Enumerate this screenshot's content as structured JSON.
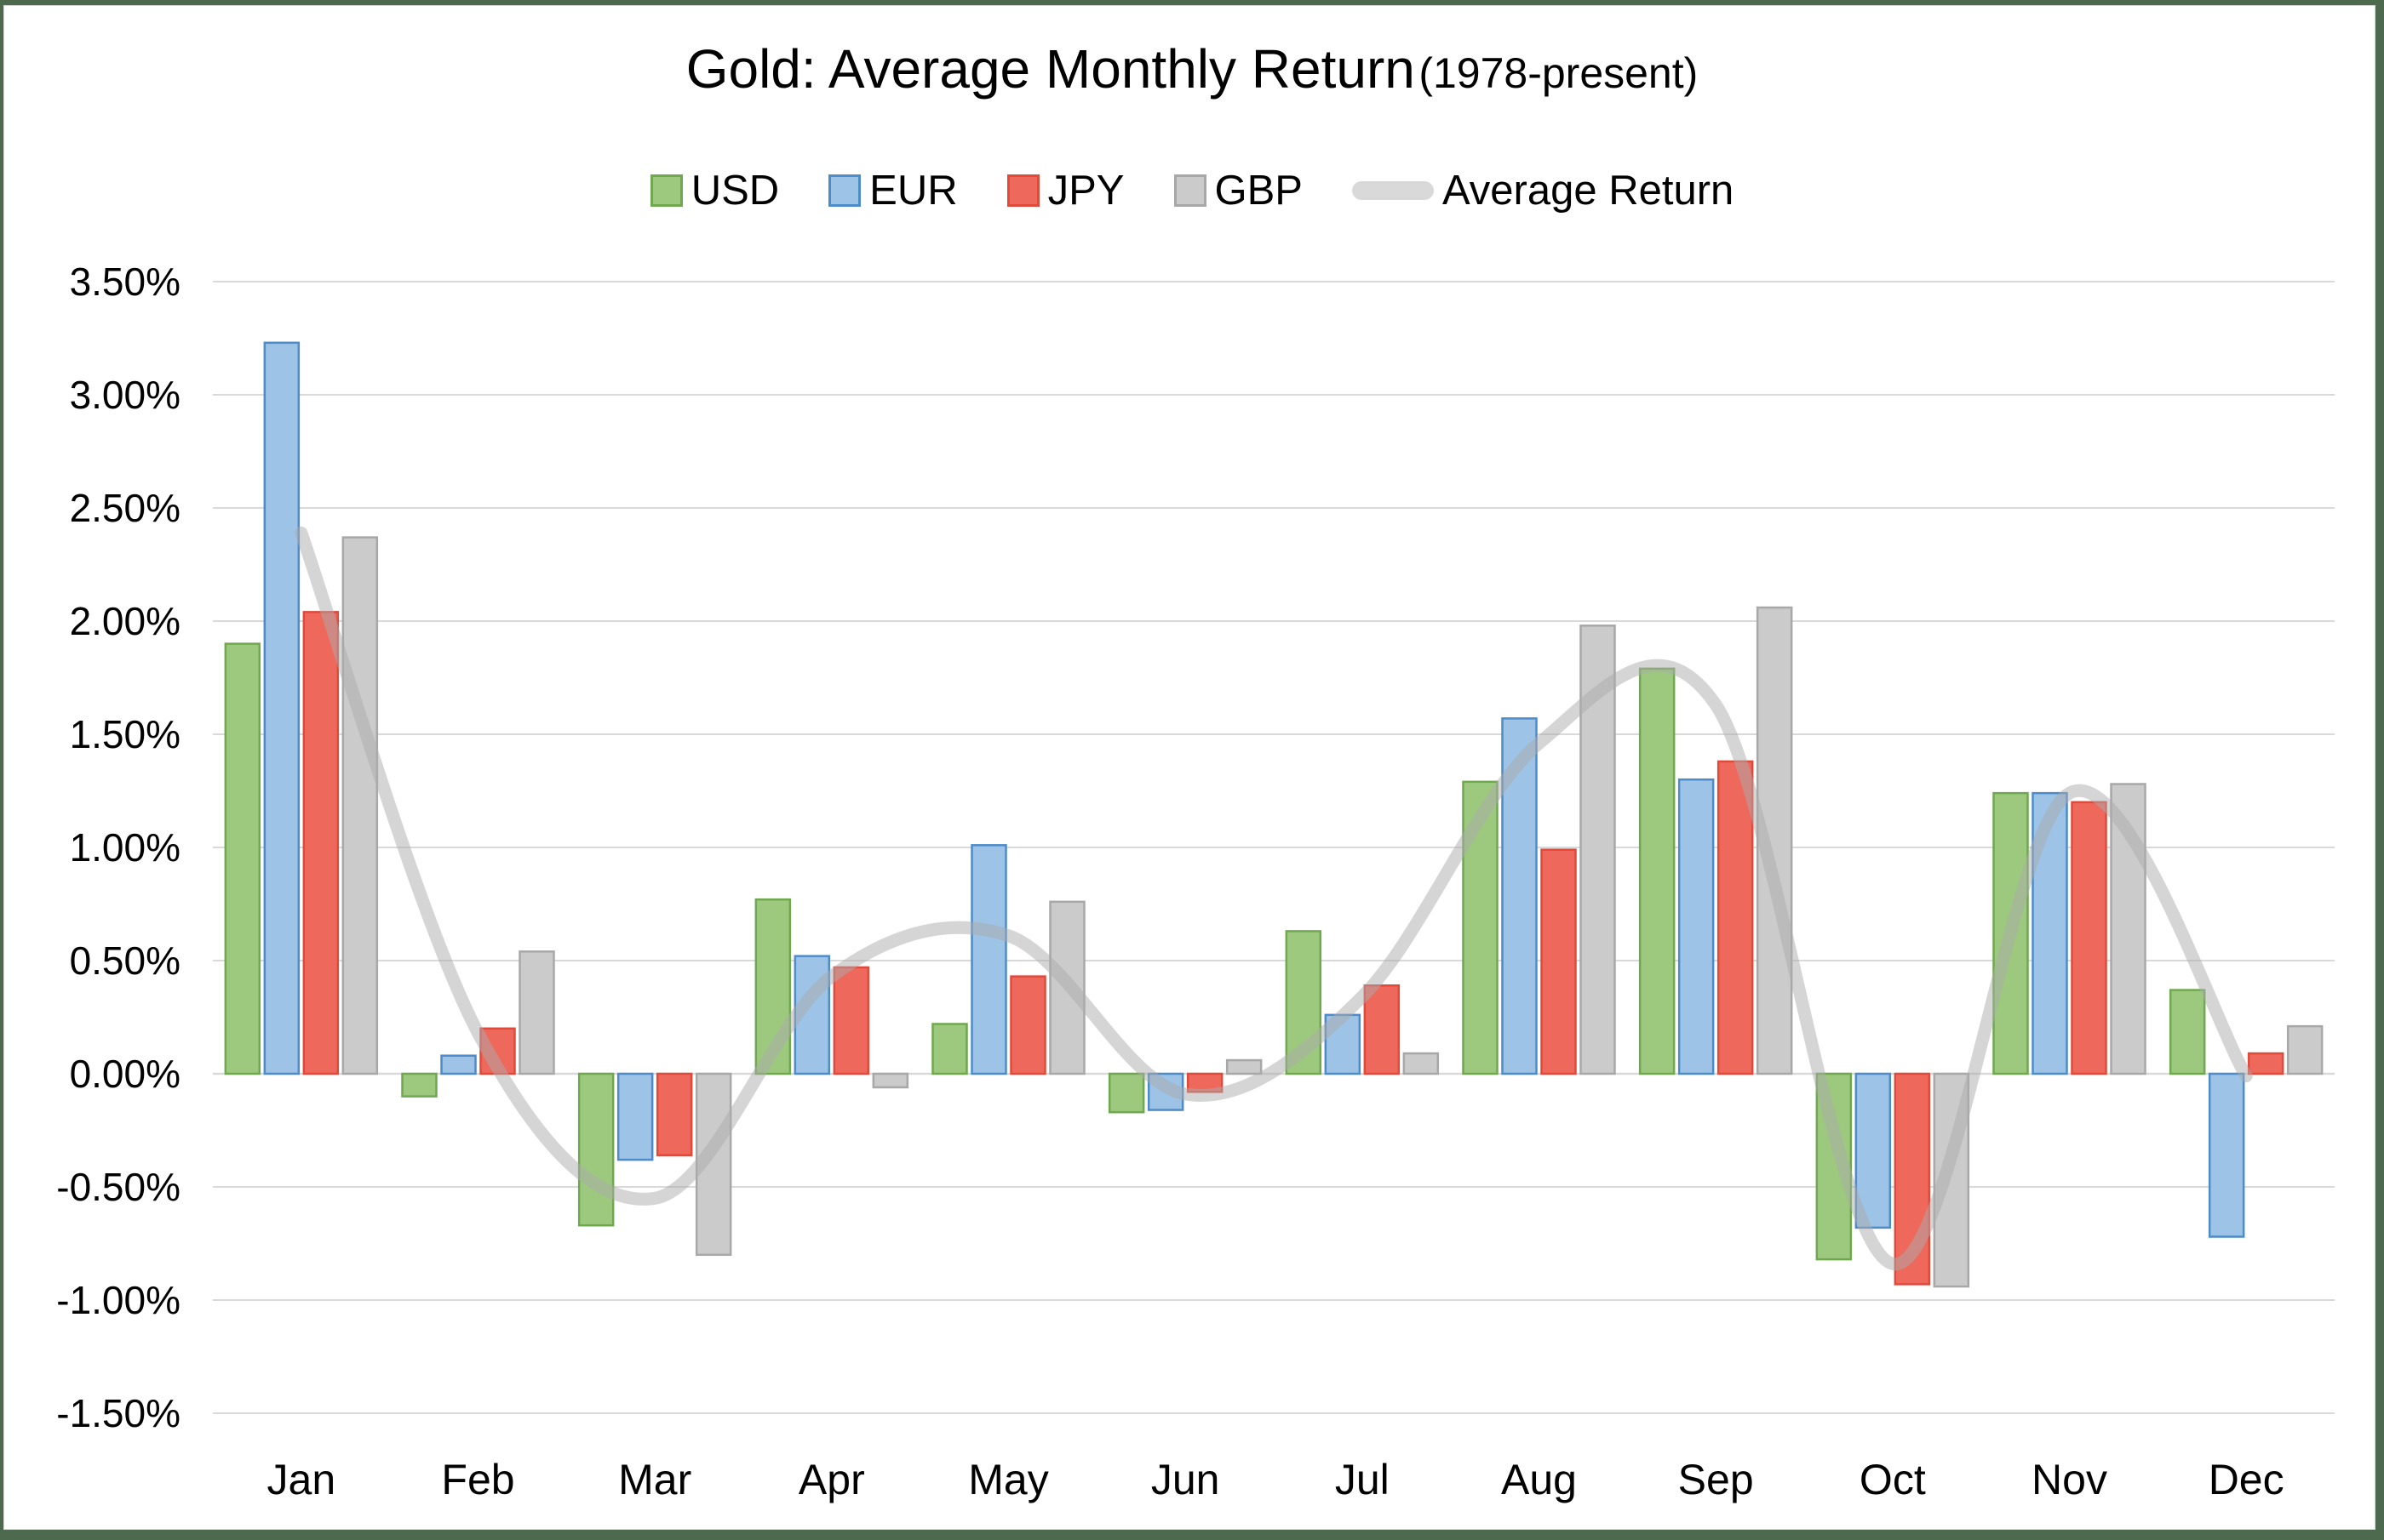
{
  "window": {
    "frame_color": "#4d6a4f",
    "panel_color": "#ffffff"
  },
  "title": {
    "main": "Gold: Average Monthly Return",
    "suffix": "(1978-present)"
  },
  "legend": [
    {
      "label": "USD",
      "type": "box",
      "fill": "#9dc97f",
      "border": "#6fa84f"
    },
    {
      "label": "EUR",
      "type": "box",
      "fill": "#9dc3e6",
      "border": "#4d8bc9"
    },
    {
      "label": "JPY",
      "type": "box",
      "fill": "#ef685c",
      "border": "#df4a3b"
    },
    {
      "label": "GBP",
      "type": "box",
      "fill": "#cbcbcb",
      "border": "#a8a8a8"
    },
    {
      "label": "Average Return",
      "type": "line",
      "fill": "#d9d9d9"
    }
  ],
  "chart_data": {
    "type": "bar",
    "title": "Gold: Average Monthly Return (1978-present)",
    "xlabel": "",
    "ylabel": "",
    "ylim": [
      -1.5,
      3.5
    ],
    "ytick_step": 0.5,
    "ytick_labels": [
      "3.50%",
      "3.00%",
      "2.50%",
      "2.00%",
      "1.50%",
      "1.00%",
      "0.50%",
      "0.00%",
      "-0.50%",
      "-1.00%",
      "-1.50%"
    ],
    "grid": true,
    "grid_color": "#d9d9d9",
    "legend_position": "top",
    "categories": [
      "Jan",
      "Feb",
      "Mar",
      "Apr",
      "May",
      "Jun",
      "Jul",
      "Aug",
      "Sep",
      "Oct",
      "Nov",
      "Dec"
    ],
    "series": [
      {
        "name": "USD",
        "fill": "#9dc97f",
        "border": "#6fa84f",
        "values": [
          1.9,
          -0.1,
          -0.67,
          0.77,
          0.22,
          -0.17,
          0.63,
          1.29,
          1.79,
          -0.82,
          1.24,
          0.37
        ]
      },
      {
        "name": "EUR",
        "fill": "#9dc3e6",
        "border": "#4d8bc9",
        "values": [
          3.23,
          0.08,
          -0.38,
          0.52,
          1.01,
          -0.16,
          0.26,
          1.57,
          1.3,
          -0.68,
          1.24,
          -0.72
        ]
      },
      {
        "name": "JPY",
        "fill": "#ef685c",
        "border": "#df4a3b",
        "values": [
          2.04,
          0.2,
          -0.36,
          0.47,
          0.43,
          -0.08,
          0.39,
          0.99,
          1.38,
          -0.93,
          1.2,
          0.09
        ]
      },
      {
        "name": "GBP",
        "fill": "#cbcbcb",
        "border": "#a8a8a8",
        "values": [
          2.37,
          0.54,
          -0.8,
          -0.06,
          0.76,
          0.06,
          0.09,
          1.98,
          2.06,
          -0.94,
          1.28,
          0.21
        ]
      }
    ],
    "line_series": {
      "name": "Average Return",
      "color": "#ababab",
      "opacity": 0.5,
      "width": 15,
      "values": [
        2.39,
        0.18,
        -0.55,
        0.43,
        0.61,
        -0.09,
        0.34,
        1.46,
        1.63,
        -0.84,
        1.24,
        -0.01
      ]
    }
  }
}
